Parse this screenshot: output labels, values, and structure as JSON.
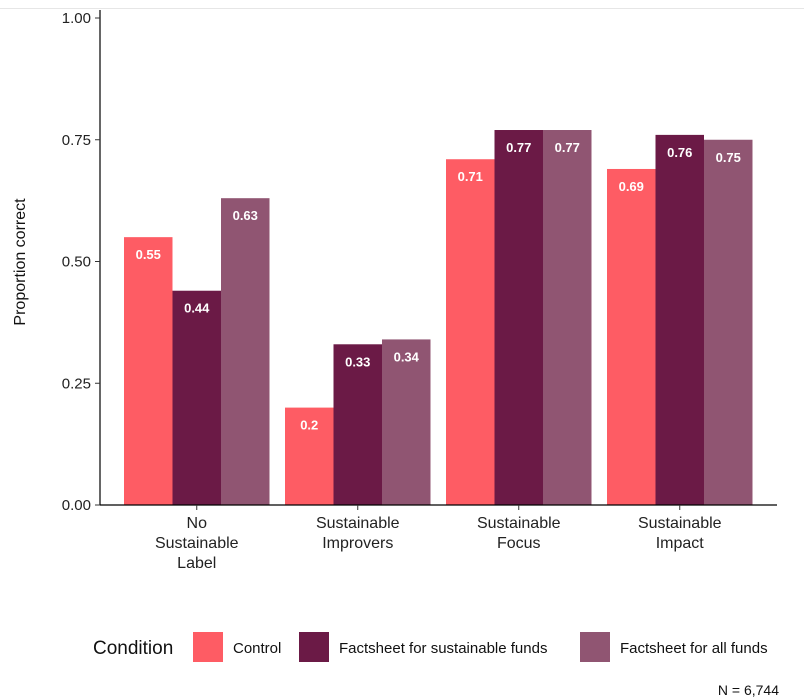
{
  "chart_data": {
    "type": "bar",
    "categories": [
      [
        "No",
        "Sustainable",
        "Label"
      ],
      [
        "Sustainable",
        "Improvers"
      ],
      [
        "Sustainable",
        "Focus"
      ],
      [
        "Sustainable",
        "Impact"
      ]
    ],
    "series": [
      {
        "name": "Control",
        "color": "#fe5c64",
        "values": [
          0.55,
          0.2,
          0.71,
          0.69
        ],
        "labels": [
          "0.55",
          "0.2",
          "0.71",
          "0.69"
        ]
      },
      {
        "name": "Factsheet for sustainable funds",
        "color": "#6b1a46",
        "values": [
          0.44,
          0.33,
          0.77,
          0.76
        ],
        "labels": [
          "0.44",
          "0.33",
          "0.77",
          "0.76"
        ]
      },
      {
        "name": "Factsheet for all funds",
        "color": "#905572",
        "values": [
          0.63,
          0.34,
          0.77,
          0.75
        ],
        "labels": [
          "0.63",
          "0.34",
          "0.77",
          "0.75"
        ]
      }
    ],
    "ylabel": "Proportion correct",
    "ylim": [
      0,
      1
    ],
    "yticks": [
      0,
      0.25,
      0.5,
      0.75,
      1
    ],
    "ytick_labels": [
      "0.00",
      "0.25",
      "0.50",
      "0.75",
      "1.00"
    ],
    "grid": false,
    "legend": {
      "title": "Condition",
      "position": "bottom"
    },
    "note": "N = 6,744"
  }
}
